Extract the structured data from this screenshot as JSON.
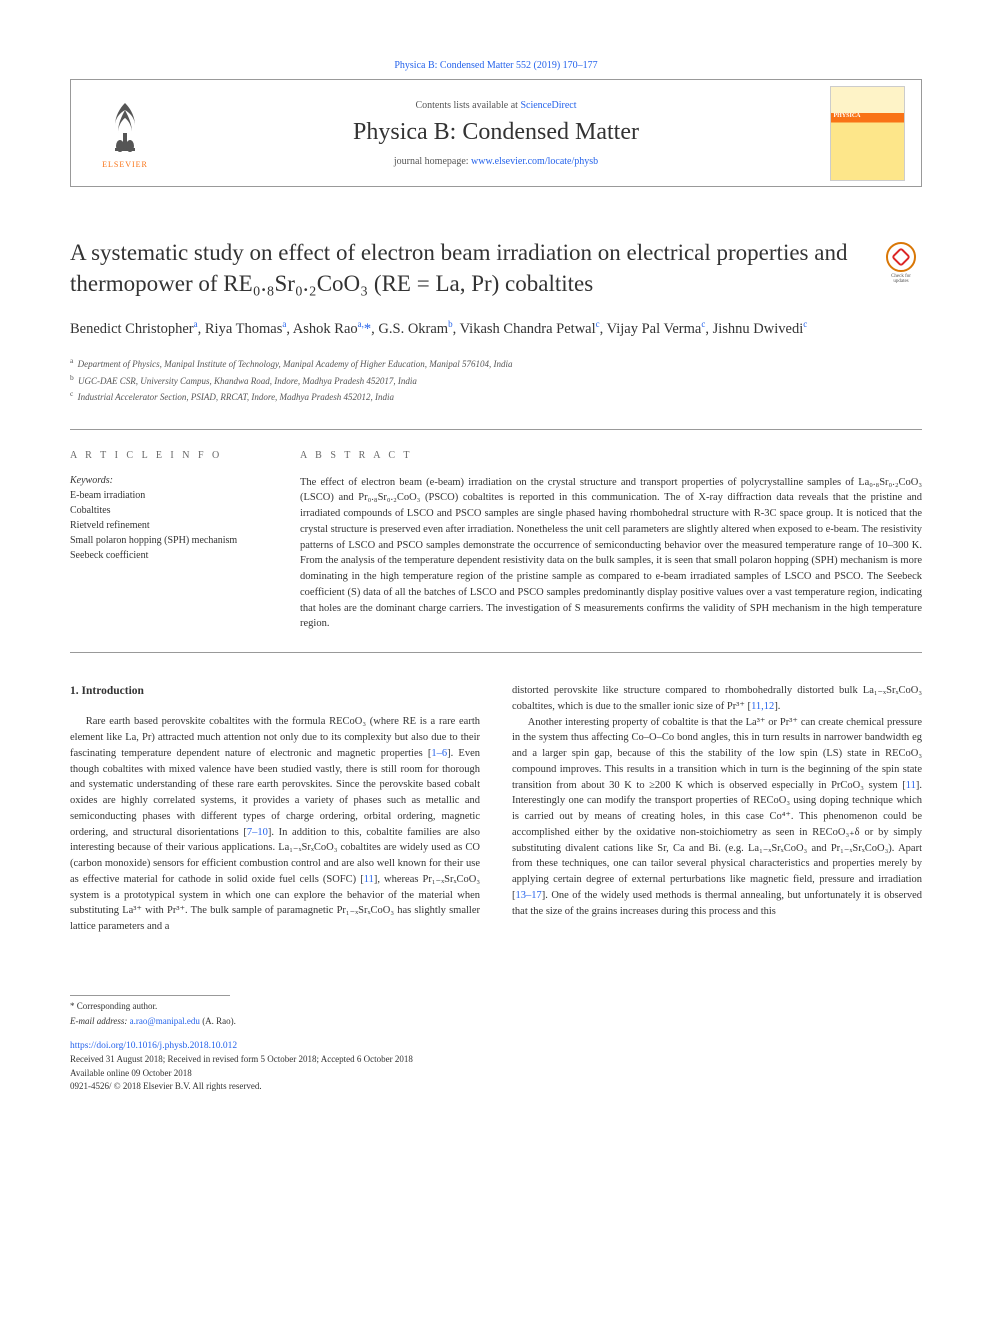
{
  "top_link_text": "Physica B: Condensed Matter 552 (2019) 170–177",
  "header": {
    "contents_prefix": "Contents lists available at ",
    "contents_link": "ScienceDirect",
    "journal_name": "Physica B: Condensed Matter",
    "homepage_prefix": "journal homepage: ",
    "homepage_link": "www.elsevier.com/locate/physb",
    "elsevier_label": "ELSEVIER",
    "cover_label": "PHYSICA"
  },
  "check_updates": {
    "line1": "Check for",
    "line2": "updates"
  },
  "title": "A systematic study on effect of electron beam irradiation on electrical properties and thermopower of RE₀.₈Sr₀.₂CoO₃ (RE = La, Pr) cobaltites",
  "authors_html": "Benedict Christopher<sup>a</sup>, Riya Thomas<sup>a</sup>, Ashok Rao<sup>a,</sup><span class='ast'>*</span>, G.S. Okram<sup>b</sup>, Vikash Chandra Petwal<sup>c</sup>, Vijay Pal Verma<sup>c</sup>, Jishnu Dwivedi<sup>c</sup>",
  "affiliations": {
    "a": "Department of Physics, Manipal Institute of Technology, Manipal Academy of Higher Education, Manipal 576104, India",
    "b": "UGC-DAE CSR, University Campus, Khandwa Road, Indore, Madhya Pradesh 452017, India",
    "c": "Industrial Accelerator Section, PSIAD, RRCAT, Indore, Madhya Pradesh 452012, India"
  },
  "article_info": {
    "heading": "A R T I C L E  I N F O",
    "keywords_label": "Keywords:",
    "keywords": [
      "E-beam irradiation",
      "Cobaltites",
      "Rietveld refinement",
      "Small polaron hopping (SPH) mechanism",
      "Seebeck coefficient"
    ]
  },
  "abstract": {
    "heading": "A B S T R A C T",
    "text": "The effect of electron beam (e-beam) irradiation on the crystal structure and transport properties of polycrystalline samples of La₀.₈Sr₀.₂CoO₃ (LSCO) and Pr₀.₈Sr₀.₂CoO₃ (PSCO) cobaltites is reported in this communication. The of X-ray diffraction data reveals that the pristine and irradiated compounds of LSCO and PSCO samples are single phased having rhombohedral structure with R-3C space group. It is noticed that the crystal structure is preserved even after irradiation. Nonetheless the unit cell parameters are slightly altered when exposed to e-beam. The resistivity patterns of LSCO and PSCO samples demonstrate the occurrence of semiconducting behavior over the measured temperature range of 10–300 K. From the analysis of the temperature dependent resistivity data on the bulk samples, it is seen that small polaron hopping (SPH) mechanism is more dominating in the high temperature region of the pristine sample as compared to e-beam irradiated samples of LSCO and PSCO. The Seebeck coefficient (S) data of all the batches of LSCO and PSCO samples predominantly display positive values over a vast temperature region, indicating that holes are the dominant charge carriers. The investigation of S measurements confirms the validity of SPH mechanism in the high temperature region."
  },
  "intro": {
    "heading": "1. Introduction",
    "para1": "Rare earth based perovskite cobaltites with the formula RECoO₃ (where RE is a rare earth element like La, Pr) attracted much attention not only due to its complexity but also due to their fascinating temperature dependent nature of electronic and magnetic properties [1–6]. Even though cobaltites with mixed valence have been studied vastly, there is still room for thorough and systematic understanding of these rare earth perovskites. Since the perovskite based cobalt oxides are highly correlated systems, it provides a variety of phases such as metallic and semiconducting phases with different types of charge ordering, orbital ordering, magnetic ordering, and structural disorientations [7–10]. In addition to this, cobaltite families are also interesting because of their various applications. La₁₋ₓSrₓCoO₃ cobaltites are widely used as CO (carbon monoxide) sensors for efficient combustion control and are also well known for their use as effective material for cathode in solid oxide fuel cells (SOFC) [11], whereas Pr₁₋ₓSrₓCoO₃ system is a prototypical system in which one can explore the behavior of the material when substituting La³⁺ with Pr³⁺. The bulk sample of paramagnetic Pr₁₋ₓSrₓCoO₃ has slightly smaller lattice parameters and a",
    "para2": "distorted perovskite like structure compared to rhombohedrally distorted bulk La₁₋ₓSrₓCoO₃ cobaltites, which is due to the smaller ionic size of Pr³⁺ [11,12].",
    "para3": "Another interesting property of cobaltite is that the La³⁺ or Pr³⁺ can create chemical pressure in the system thus affecting Co–O–Co bond angles, this in turn results in narrower bandwidth eg and a larger spin gap, because of this the stability of the low spin (LS) state in RECoO₃ compound improves. This results in a transition which in turn is the beginning of the spin state transition from about 30 K to ≥200 K which is observed especially in PrCoO₃ system [11]. Interestingly one can modify the transport properties of RECoO₃ using doping technique which is carried out by means of creating holes, in this case Co⁴⁺. This phenomenon could be accomplished either by the oxidative non-stoichiometry as seen in RECoO₃₊δ or by simply substituting divalent cations like Sr, Ca and Bi. (e.g. La₁₋ₓSrₓCoO₃ and Pr₁₋ₓSrₓCoO₃). Apart from these techniques, one can tailor several physical characteristics and properties merely by applying certain degree of external perturbations like magnetic field, pressure and irradiation [13–17]. One of the widely used methods is thermal annealing, but unfortunately it is observed that the size of the grains increases during this process and this"
  },
  "footer": {
    "corr_label": "* Corresponding author.",
    "email_label": "E-mail address: ",
    "email": "a.rao@manipal.edu",
    "email_suffix": " (A. Rao).",
    "doi": "https://doi.org/10.1016/j.physb.2018.10.012",
    "received": "Received 31 August 2018; Received in revised form 5 October 2018; Accepted 6 October 2018",
    "available": "Available online 09 October 2018",
    "copyright": "0921-4526/ © 2018 Elsevier B.V. All rights reserved."
  },
  "colors": {
    "link": "#2563eb",
    "orange": "#f97316",
    "text": "#333333",
    "muted": "#666666",
    "border": "#999999"
  }
}
